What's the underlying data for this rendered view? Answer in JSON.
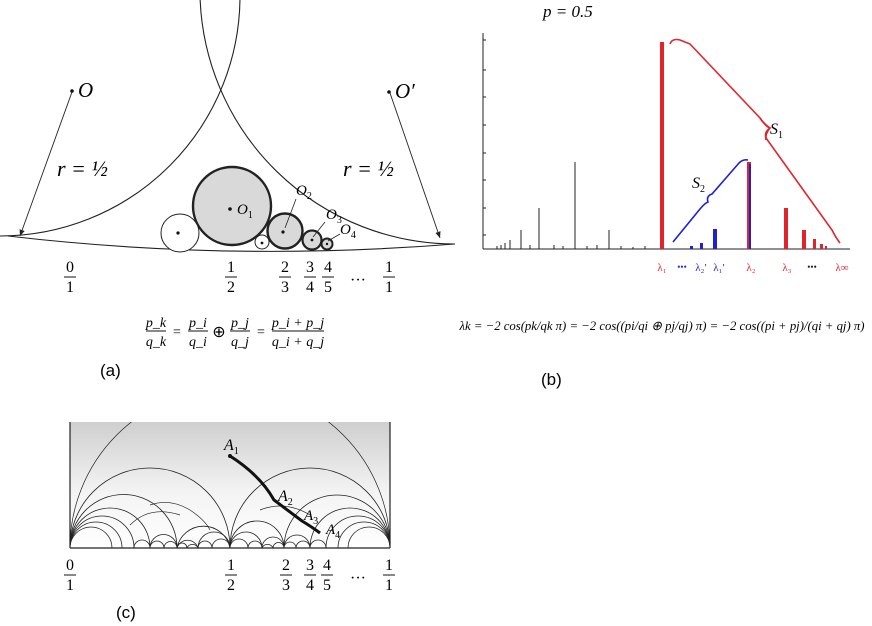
{
  "panel_a": {
    "label": "(a)",
    "center_left": "O",
    "center_right": "O′",
    "radius_left": "r = ½",
    "radius_right": "r = ½",
    "circle_labels": [
      "O",
      "O",
      "O",
      "O"
    ],
    "circle_subs": [
      "1",
      "2",
      "3",
      "4"
    ],
    "fractions": [
      {
        "num": "0",
        "den": "1"
      },
      {
        "num": "1",
        "den": "2"
      },
      {
        "num": "2",
        "den": "3"
      },
      {
        "num": "3",
        "den": "4"
      },
      {
        "num": "4",
        "den": "5"
      },
      {
        "num": "1",
        "den": "1"
      }
    ],
    "ellipsis": "···",
    "formula": {
      "lhs": {
        "num": "p_k",
        "den": "q_k"
      },
      "a": {
        "num": "p_i",
        "den": "q_i"
      },
      "op": "⊕",
      "b": {
        "num": "p_j",
        "den": "q_j"
      },
      "rhs": {
        "num": "p_i + p_j",
        "den": "q_i + q_j"
      }
    }
  },
  "panel_b": {
    "label": "(b)",
    "title": "p = 0.5",
    "brace_s1": "S",
    "brace_s1_sub": "1",
    "brace_s2": "S",
    "brace_s2_sub": "2",
    "eigen_labels": [
      {
        "text": "λ₁",
        "color": "#e0242b"
      },
      {
        "text": "•••",
        "color": "#1f1fd6"
      },
      {
        "text": "λ₂′",
        "color": "#1f1fd6"
      },
      {
        "text": "λ₁′",
        "color": "#1f1fd6"
      },
      {
        "text": "λ₂",
        "color": "#e0242b"
      },
      {
        "text": "λ₃",
        "color": "#e0242b"
      },
      {
        "text": "•••",
        "color": "#1a1a1a"
      },
      {
        "text": "λ∞",
        "color": "#e0242b"
      }
    ],
    "formula": "λk = −2 cos(pk/qk π) = −2 cos((pi/qi ⊕ pj/qj) π) = −2 cos((pi + pj)/(qi + qj) π)"
  },
  "panel_c": {
    "label": "(c)",
    "points": [
      {
        "text": "A",
        "sub": "1"
      },
      {
        "text": "A",
        "sub": "2"
      },
      {
        "text": "A",
        "sub": "3"
      },
      {
        "text": "A",
        "sub": "4"
      }
    ],
    "fractions": [
      {
        "num": "0",
        "den": "1"
      },
      {
        "num": "1",
        "den": "2"
      },
      {
        "num": "2",
        "den": "3"
      },
      {
        "num": "3",
        "den": "4"
      },
      {
        "num": "4",
        "den": "5"
      },
      {
        "num": "1",
        "den": "1"
      }
    ],
    "ellipsis": "···"
  },
  "colors": {
    "red": "#e0242b",
    "blue": "#1f1fd6",
    "ink": "#111111",
    "disk_fill": "#d9d9d9"
  }
}
